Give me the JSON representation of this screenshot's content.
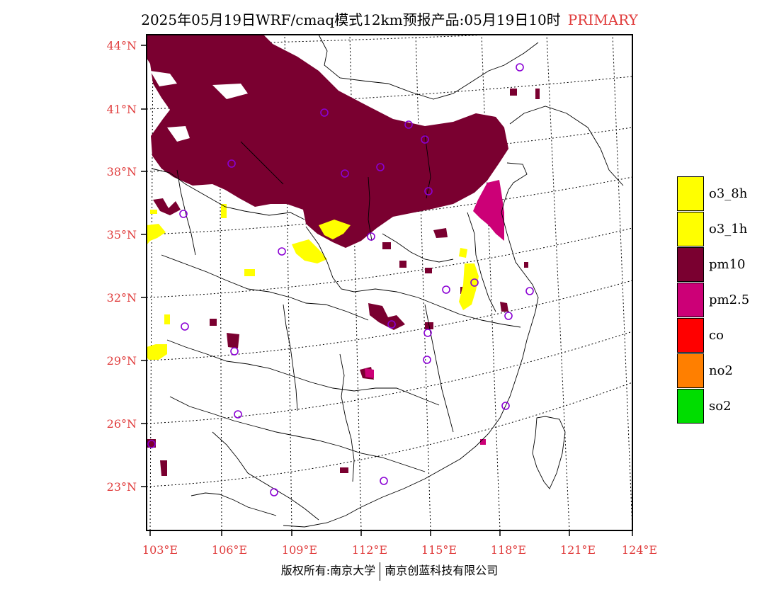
{
  "title": {
    "main": "2025年05月19日WRF/cmaq模式12km预报产品:05月19日10时",
    "tag": "PRIMARY"
  },
  "axes": {
    "lat_labels": [
      "44°N",
      "41°N",
      "38°N",
      "35°N",
      "32°N",
      "29°N",
      "26°N",
      "23°N"
    ],
    "lon_labels": [
      "103°E",
      "106°E",
      "109°E",
      "112°E",
      "115°E",
      "118°E",
      "121°E",
      "124°E"
    ]
  },
  "colors": {
    "o3_8h": "#ffff00",
    "o3_1h": "#ffff00",
    "pm10": "#7a0030",
    "pm2_5": "#cc0077",
    "co": "#ff0000",
    "no2": "#ff7f00",
    "so2": "#00dd00",
    "station": "#8a00d4",
    "axis_label": "#e03c3c"
  },
  "legend": [
    {
      "label": "o3_8h",
      "color": "#ffff00"
    },
    {
      "label": "o3_1h",
      "color": "#ffff00"
    },
    {
      "label": "pm10",
      "color": "#7a0030"
    },
    {
      "label": "pm2.5",
      "color": "#cc0077"
    },
    {
      "label": "co",
      "color": "#ff0000"
    },
    {
      "label": "no2",
      "color": "#ff7f00"
    },
    {
      "label": "so2",
      "color": "#00dd00"
    }
  ],
  "footer": {
    "left": "版权所有:南京大学",
    "right": "南京创蓝科技有限公司"
  }
}
